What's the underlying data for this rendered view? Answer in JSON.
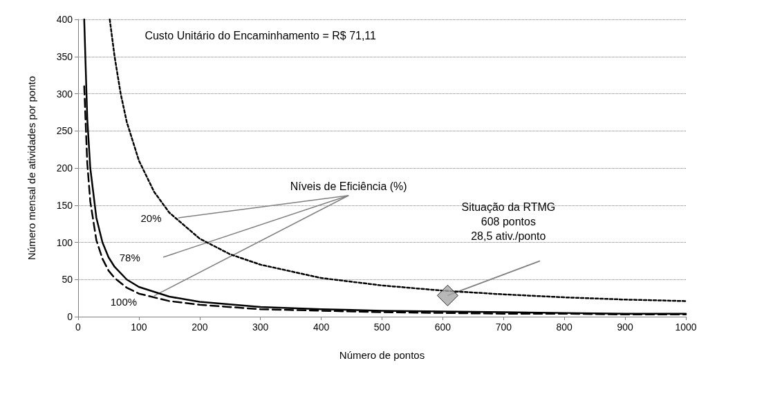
{
  "chart_data": {
    "type": "line",
    "xlabel": "Número de pontos",
    "ylabel": "Número mensal de atividades por ponto",
    "xlim": [
      0,
      1000
    ],
    "xticks": [
      0,
      100,
      200,
      300,
      400,
      500,
      600,
      700,
      800,
      900,
      1000
    ],
    "ylim": [
      0,
      400
    ],
    "yticks": [
      0,
      50,
      100,
      150,
      200,
      250,
      300,
      350,
      400
    ],
    "grid": "y",
    "marker": "none",
    "series": [
      {
        "name": "20%",
        "color": "#000000",
        "line_style": "dotted",
        "x": [
          52,
          60,
          70,
          80,
          100,
          125,
          150,
          200,
          250,
          300,
          400,
          500,
          600,
          700,
          800,
          900,
          1000
        ],
        "values": [
          400,
          350,
          300,
          262,
          210,
          168,
          140,
          105,
          84,
          70,
          52,
          42,
          35,
          30,
          26,
          23,
          21
        ]
      },
      {
        "name": "78%",
        "color": "#000000",
        "line_style": "solid",
        "x": [
          10,
          15,
          20,
          30,
          40,
          50,
          60,
          80,
          100,
          150,
          200,
          300,
          400,
          500,
          600,
          700,
          800,
          900,
          1000
        ],
        "values": [
          400,
          267,
          200,
          133,
          100,
          80,
          67,
          50,
          40,
          27,
          20,
          13,
          10,
          8,
          7,
          6,
          5,
          4,
          4
        ]
      },
      {
        "name": "100%",
        "color": "#000000",
        "line_style": "dashed",
        "x": [
          10,
          15,
          20,
          30,
          40,
          50,
          60,
          80,
          100,
          150,
          200,
          300,
          400,
          500,
          600,
          700,
          800,
          900,
          1000
        ],
        "values": [
          310,
          207,
          155,
          103,
          78,
          62,
          52,
          39,
          31,
          21,
          16,
          10,
          8,
          6,
          5,
          4,
          4,
          3,
          3
        ]
      },
      {
        "type": "scatter",
        "marker": "diamond",
        "color": "#a6a6a6",
        "x": [
          608
        ],
        "values": [
          28.5
        ]
      }
    ],
    "annotations": [
      "Custo Unitário do Encaminhamento = R$ 71,11",
      {
        "text": "Níveis de Eficiência (%)",
        "x": 125,
        "y": 28
      },
      "Situação da RTMG\n608 pontos\n28,5 ativ./ponto"
    ]
  }
}
